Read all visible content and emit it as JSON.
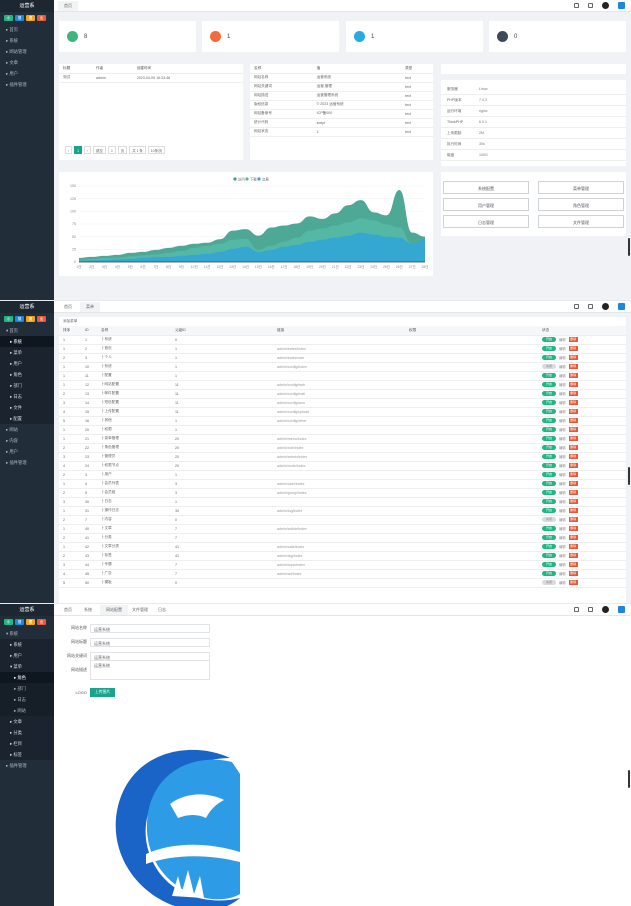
{
  "sidebar": {
    "title": "运营系",
    "mini_buttons": [
      {
        "label": "小",
        "color": "#21b67f"
      },
      {
        "label": "搜",
        "color": "#1e88d8"
      },
      {
        "label": "置",
        "color": "#f0a51e"
      },
      {
        "label": "出",
        "color": "#e55a3c"
      },
      {
        "label": "退",
        "color": "#17a58d"
      }
    ],
    "menu_1": [
      "首页",
      "系统",
      "网站管理",
      "文章",
      "用户",
      "插件管理"
    ],
    "menu_2": [
      "首页",
      "系统",
      "菜单",
      "用户",
      "角色",
      "部门",
      "日志",
      "文件",
      "配置",
      "网站",
      "内容",
      "用户",
      "插件管理"
    ],
    "menu_3": [
      "系统",
      "系统",
      "用户",
      "菜单",
      "角色",
      "部门",
      "日志",
      "网站",
      "文章",
      "分类",
      "栏目",
      "标签",
      "插件管理"
    ]
  },
  "screen1": {
    "tab": "首页",
    "stats": [
      {
        "icon": "user-icon",
        "value": "8",
        "color": "#3bb77e"
      },
      {
        "icon": "order-icon",
        "value": "1",
        "color": "#f26a3d"
      },
      {
        "icon": "bell-icon",
        "value": "1",
        "color": "#27a9e1"
      },
      {
        "icon": "chart-icon",
        "value": "0",
        "color": "#3e4a59"
      }
    ],
    "table_a": {
      "headers": [
        "标题",
        "作者",
        "创建时间"
      ],
      "rows": [
        [
          "测试",
          "admin",
          "2023-04-09 16:23:48"
        ]
      ],
      "pagination": [
        "1",
        "跳至",
        "1",
        "页",
        "共 1 条",
        "10条/页"
      ]
    },
    "table_b": {
      "headers": [
        "名称",
        "值",
        "类型"
      ],
      "rows": [
        [
          "网站名称",
          "运营系统",
          "text"
        ],
        [
          "网站关键词",
          "运营,管理",
          "text"
        ],
        [
          "网站描述",
          "运营管理系统",
          "text"
        ],
        [
          "版权信息",
          "© 2023 运营系统",
          "text"
        ],
        [
          "网站备案号",
          "ICP备000",
          "text"
        ],
        [
          "统计代码",
          "script",
          "text"
        ],
        [
          "网站状态",
          "1",
          "text"
        ]
      ]
    },
    "info": {
      "title": "",
      "rows": [
        {
          "k": "服务器",
          "v": "Linux"
        },
        {
          "k": "PHP版本",
          "v": "7.4.3"
        },
        {
          "k": "运行环境",
          "v": "nginx"
        },
        {
          "k": "ThinkPHP",
          "v": "6.0.1"
        },
        {
          "k": "上传限制",
          "v": "2M"
        },
        {
          "k": "执行时间",
          "v": "30s"
        },
        {
          "k": "磁盘",
          "v": "100G"
        }
      ]
    },
    "quick_buttons": [
      "系统配置",
      "菜单管理",
      "用户管理",
      "角色管理",
      "日志管理",
      "文件管理"
    ]
  },
  "chart_data": {
    "type": "area",
    "title": "",
    "legend": [
      "访问",
      "下载",
      "交易"
    ],
    "yticks": [
      "150",
      "125",
      "100",
      "75",
      "50",
      "25",
      "0"
    ],
    "ylim": [
      0,
      150
    ],
    "x": [
      "1日",
      "2日",
      "3日",
      "4日",
      "5日",
      "6日",
      "7日",
      "8日",
      "9日",
      "10日",
      "11日",
      "12日",
      "13日",
      "14日",
      "15日",
      "16日",
      "17日",
      "18日",
      "19日",
      "20日",
      "21日",
      "22日",
      "23日",
      "24日",
      "25日",
      "26日",
      "27日",
      "28日"
    ],
    "series": [
      {
        "name": "访问",
        "color": "#3a9e89",
        "values": [
          8,
          10,
          12,
          14,
          18,
          20,
          24,
          28,
          32,
          36,
          38,
          45,
          62,
          65,
          52,
          68,
          72,
          76,
          90,
          85,
          96,
          112,
          122,
          98,
          92,
          142,
          58,
          50
        ]
      },
      {
        "name": "下载",
        "color": "#55b9a6",
        "values": [
          4,
          6,
          8,
          9,
          11,
          13,
          15,
          18,
          22,
          28,
          32,
          36,
          44,
          46,
          24,
          32,
          40,
          48,
          62,
          66,
          72,
          78,
          86,
          82,
          74,
          68,
          36,
          42
        ]
      },
      {
        "name": "交易",
        "color": "#2fa4d8",
        "values": [
          2,
          3,
          4,
          5,
          6,
          8,
          9,
          10,
          12,
          14,
          16,
          20,
          26,
          30,
          20,
          24,
          30,
          34,
          40,
          44,
          48,
          52,
          58,
          54,
          50,
          48,
          36,
          44
        ]
      }
    ]
  },
  "screen2": {
    "tabs": [
      "首页",
      "菜单"
    ],
    "toolbar_label": "添加菜单",
    "headers": [
      "排序",
      "ID",
      "名称",
      "父级ID",
      "链接",
      "权限",
      "状态"
    ],
    "rows": [
      [
        "1",
        "1",
        "├ 系统",
        "0",
        "",
        "",
        "开启"
      ],
      [
        "1",
        "2",
        "├ 首页",
        "1",
        "admin/index/index",
        "",
        "开启"
      ],
      [
        "2",
        "3",
        "├ 个人",
        "1",
        "admin/index/user",
        "",
        "开启"
      ],
      [
        "1",
        "10",
        "├ 系统",
        "1",
        "admin/config/index",
        "",
        "关闭"
      ],
      [
        "1",
        "11",
        "├ 配置",
        "1",
        "",
        "",
        "开启"
      ],
      [
        "1",
        "12",
        "├ 网站配置",
        "11",
        "admin/config/web",
        "",
        "开启"
      ],
      [
        "2",
        "13",
        "├ 邮件配置",
        "11",
        "admin/config/mail",
        "",
        "开启"
      ],
      [
        "3",
        "14",
        "├ 短信配置",
        "11",
        "admin/config/sms",
        "",
        "开启"
      ],
      [
        "4",
        "15",
        "├ 上传配置",
        "11",
        "admin/config/upload",
        "",
        "开启"
      ],
      [
        "5",
        "16",
        "├ 其他",
        "1",
        "admin/config/other",
        "",
        "开启"
      ],
      [
        "1",
        "20",
        "├ 权限",
        "1",
        "",
        "",
        "开启"
      ],
      [
        "1",
        "21",
        "├ 菜单管理",
        "20",
        "admin/menu/index",
        "",
        "开启"
      ],
      [
        "2",
        "22",
        "├ 角色管理",
        "20",
        "admin/role/index",
        "",
        "开启"
      ],
      [
        "3",
        "23",
        "├ 管理员",
        "20",
        "admin/admin/index",
        "",
        "开启"
      ],
      [
        "4",
        "24",
        "├ 权限节点",
        "20",
        "admin/node/index",
        "",
        "开启"
      ],
      [
        "2",
        "3",
        "├ 用户",
        "1",
        "",
        "",
        "开启"
      ],
      [
        "1",
        "4",
        "├ 会员列表",
        "3",
        "admin/user/index",
        "",
        "开启"
      ],
      [
        "2",
        "5",
        "├ 会员组",
        "3",
        "admin/group/index",
        "",
        "开启"
      ],
      [
        "3",
        "30",
        "├ 日志",
        "1",
        "",
        "",
        "开启"
      ],
      [
        "1",
        "31",
        "├ 操作日志",
        "30",
        "admin/log/index",
        "",
        "开启"
      ],
      [
        "2",
        "7",
        "├ 内容",
        "0",
        "",
        "",
        "关闭"
      ],
      [
        "1",
        "40",
        "├ 文章",
        "7",
        "admin/article/index",
        "",
        "开启"
      ],
      [
        "2",
        "41",
        "├ 分类",
        "7",
        "",
        "",
        "开启"
      ],
      [
        "1",
        "42",
        "├ 文章分类",
        "41",
        "admin/cate/index",
        "",
        "开启"
      ],
      [
        "2",
        "43",
        "├ 标签",
        "41",
        "admin/tag/index",
        "",
        "开启"
      ],
      [
        "3",
        "44",
        "├ 专题",
        "7",
        "admin/topic/index",
        "",
        "开启"
      ],
      [
        "4",
        "45",
        "├ 广告",
        "7",
        "admin/ad/index",
        "",
        "开启"
      ],
      [
        "5",
        "50",
        "├ 模板",
        "0",
        "",
        "",
        "关闭"
      ]
    ],
    "action_edit": "编辑",
    "action_del": "删除"
  },
  "screen3": {
    "tabs": [
      "首页",
      "系统",
      "网站配置",
      "文件管理",
      "日志"
    ],
    "form": [
      {
        "label": "网站名称",
        "value": "运营系统"
      },
      {
        "label": "网站标题",
        "value": "运营系统"
      },
      {
        "label": "网站关键词",
        "value": "运营系统"
      },
      {
        "label": "网站描述",
        "value": "运营系统"
      }
    ],
    "logo_label": "LOGO",
    "upload_button": "上传图片"
  }
}
